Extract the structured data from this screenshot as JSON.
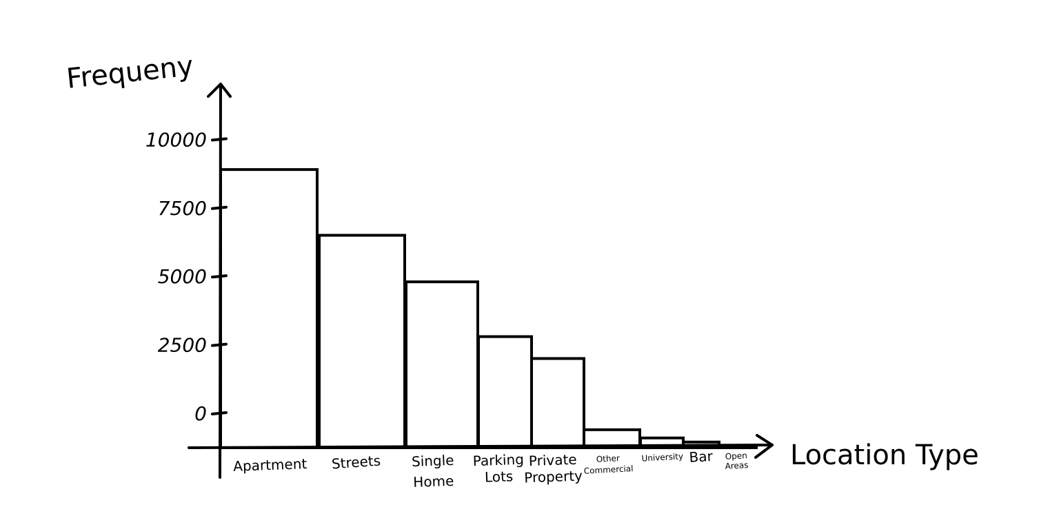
{
  "chart_data": {
    "type": "bar",
    "title": "",
    "xlabel": "Location Type",
    "ylabel": "Frequeny",
    "y_ticks": [
      0,
      2500,
      5000,
      7500,
      10000
    ],
    "y_tick_labels": [
      "0",
      "2500",
      "5000",
      "7500",
      "10000"
    ],
    "ylim": [
      -1250,
      12000
    ],
    "grid": false,
    "categories": [
      "Apartment",
      "Streets",
      "Single Home",
      "Parking Lots",
      "Private Property",
      "Other Commercial",
      "University",
      "Bar",
      "Open Areas"
    ],
    "values": [
      8900,
      6500,
      4800,
      2800,
      2000,
      -600,
      -900,
      -1050,
      -1200
    ]
  }
}
